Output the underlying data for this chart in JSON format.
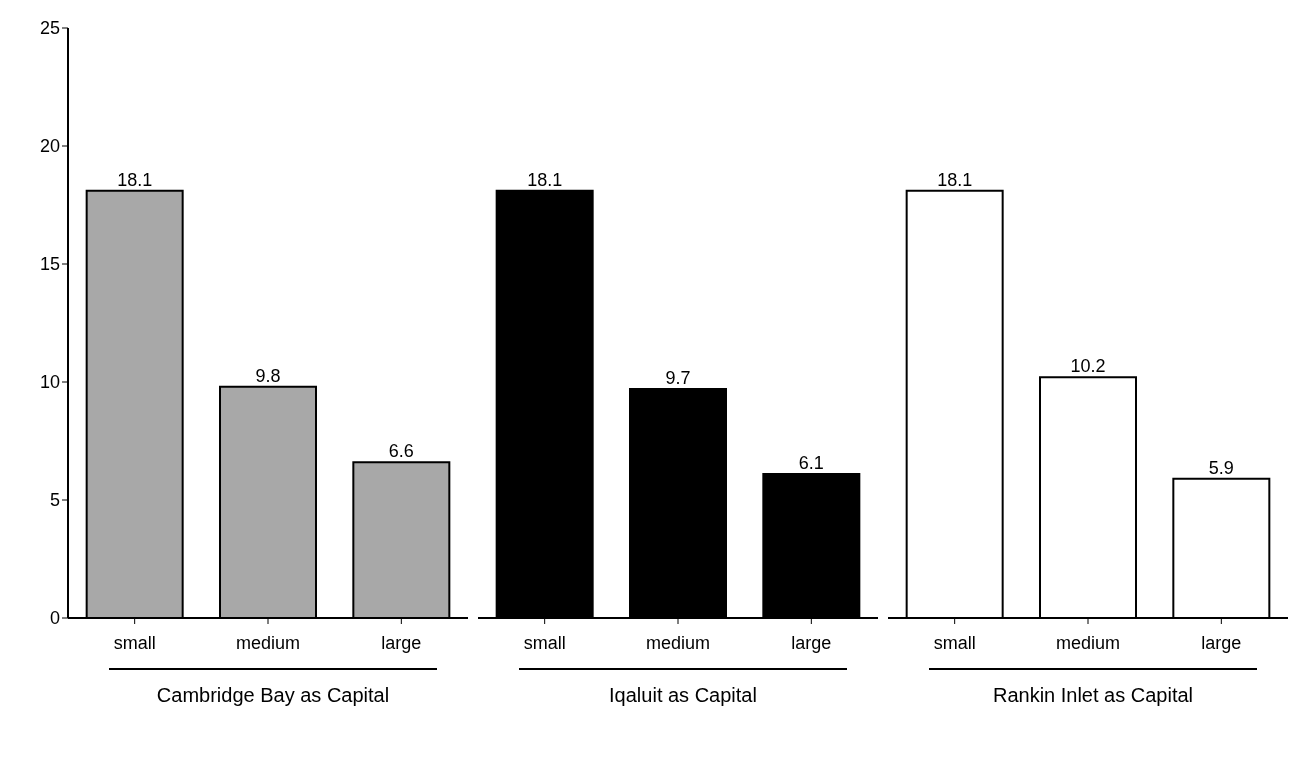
{
  "chart_data": [
    {
      "type": "bar",
      "xlabel": "Cambridge Bay as Capital",
      "categories": [
        "small",
        "medium",
        "large"
      ],
      "values": [
        18.1,
        9.8,
        6.6
      ],
      "color": "#a8a8a8",
      "ylim": [
        0,
        25
      ],
      "yticks": [
        0,
        5,
        10,
        15,
        20,
        25
      ],
      "data_labels": true
    },
    {
      "type": "bar",
      "xlabel": "Iqaluit as Capital",
      "categories": [
        "small",
        "medium",
        "large"
      ],
      "values": [
        18.1,
        9.7,
        6.1
      ],
      "color": "#000000",
      "ylim": [
        0,
        25
      ],
      "yticks": [
        0,
        5,
        10,
        15,
        20,
        25
      ],
      "data_labels": true,
      "tick_labels": "x"
    },
    {
      "type": "bar",
      "xlabel": "Rankin Inlet as Capital",
      "categories": [
        "small",
        "medium",
        "large"
      ],
      "values": [
        18.1,
        10.2,
        5.9
      ],
      "color": "#ffffff",
      "ylim": [
        0,
        25
      ],
      "yticks": [
        0,
        5,
        10,
        15,
        20,
        25
      ],
      "data_labels": true,
      "tick_labels": "x"
    }
  ]
}
